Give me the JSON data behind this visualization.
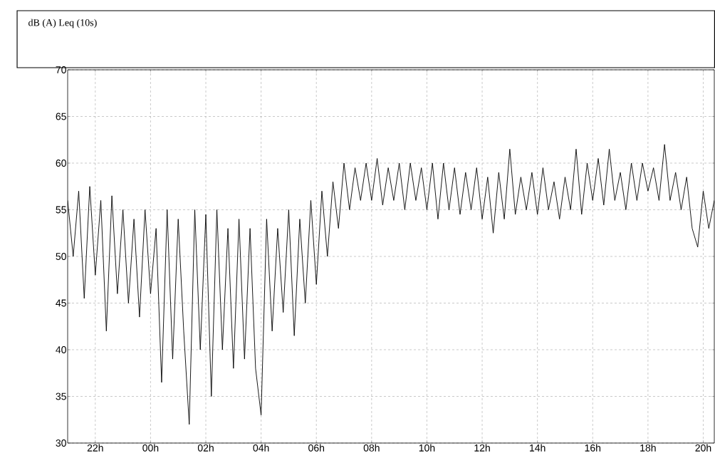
{
  "chart_data": {
    "type": "line",
    "title": "dB (A) Leq (10s)",
    "x": [
      "2000-01-01T21:00",
      "2000-01-01T21:12",
      "2000-01-01T21:24",
      "2000-01-01T21:36",
      "2000-01-01T21:48",
      "2000-01-01T22:00",
      "2000-01-01T22:12",
      "2000-01-01T22:24",
      "2000-01-01T22:36",
      "2000-01-01T22:48",
      "2000-01-01T23:00",
      "2000-01-01T23:12",
      "2000-01-01T23:24",
      "2000-01-01T23:36",
      "2000-01-01T23:48",
      "2000-01-02T00:00",
      "2000-01-02T00:12",
      "2000-01-02T00:24",
      "2000-01-02T00:36",
      "2000-01-02T00:48",
      "2000-01-02T01:00",
      "2000-01-02T01:12",
      "2000-01-02T01:24",
      "2000-01-02T01:36",
      "2000-01-02T01:48",
      "2000-01-02T02:00",
      "2000-01-02T02:12",
      "2000-01-02T02:24",
      "2000-01-02T02:36",
      "2000-01-02T02:48",
      "2000-01-02T03:00",
      "2000-01-02T03:12",
      "2000-01-02T03:24",
      "2000-01-02T03:36",
      "2000-01-02T03:48",
      "2000-01-02T04:00",
      "2000-01-02T04:12",
      "2000-01-02T04:24",
      "2000-01-02T04:36",
      "2000-01-02T04:48",
      "2000-01-02T05:00",
      "2000-01-02T05:12",
      "2000-01-02T05:24",
      "2000-01-02T05:36",
      "2000-01-02T05:48",
      "2000-01-02T06:00",
      "2000-01-02T06:12",
      "2000-01-02T06:24",
      "2000-01-02T06:36",
      "2000-01-02T06:48",
      "2000-01-02T07:00",
      "2000-01-02T07:12",
      "2000-01-02T07:24",
      "2000-01-02T07:36",
      "2000-01-02T07:48",
      "2000-01-02T08:00",
      "2000-01-02T08:12",
      "2000-01-02T08:24",
      "2000-01-02T08:36",
      "2000-01-02T08:48",
      "2000-01-02T09:00",
      "2000-01-02T09:12",
      "2000-01-02T09:24",
      "2000-01-02T09:36",
      "2000-01-02T09:48",
      "2000-01-02T10:00",
      "2000-01-02T10:12",
      "2000-01-02T10:24",
      "2000-01-02T10:36",
      "2000-01-02T10:48",
      "2000-01-02T11:00",
      "2000-01-02T11:12",
      "2000-01-02T11:24",
      "2000-01-02T11:36",
      "2000-01-02T11:48",
      "2000-01-02T12:00",
      "2000-01-02T12:12",
      "2000-01-02T12:24",
      "2000-01-02T12:36",
      "2000-01-02T12:48",
      "2000-01-02T13:00",
      "2000-01-02T13:12",
      "2000-01-02T13:24",
      "2000-01-02T13:36",
      "2000-01-02T13:48",
      "2000-01-02T14:00",
      "2000-01-02T14:12",
      "2000-01-02T14:24",
      "2000-01-02T14:36",
      "2000-01-02T14:48",
      "2000-01-02T15:00",
      "2000-01-02T15:12",
      "2000-01-02T15:24",
      "2000-01-02T15:36",
      "2000-01-02T15:48",
      "2000-01-02T16:00",
      "2000-01-02T16:12",
      "2000-01-02T16:24",
      "2000-01-02T16:36",
      "2000-01-02T16:48",
      "2000-01-02T17:00",
      "2000-01-02T17:12",
      "2000-01-02T17:24",
      "2000-01-02T17:36",
      "2000-01-02T17:48",
      "2000-01-02T18:00",
      "2000-01-02T18:12",
      "2000-01-02T18:24",
      "2000-01-02T18:36",
      "2000-01-02T18:48",
      "2000-01-02T19:00",
      "2000-01-02T19:12",
      "2000-01-02T19:24",
      "2000-01-02T19:36",
      "2000-01-02T19:48",
      "2000-01-02T20:00",
      "2000-01-02T20:12",
      "2000-01-02T20:24"
    ],
    "values": [
      56,
      50,
      57,
      45.5,
      57.5,
      48,
      56,
      42,
      56.5,
      46,
      55,
      45,
      54,
      43.5,
      55,
      46,
      53,
      36.5,
      55,
      39,
      54,
      42,
      32,
      55,
      40,
      54.5,
      35,
      55,
      40,
      53,
      38,
      54,
      39,
      53,
      38,
      33,
      54,
      42,
      53,
      44,
      55,
      41.5,
      54,
      45,
      56,
      47,
      57,
      50,
      58,
      53,
      60,
      55,
      59.5,
      56,
      60,
      56,
      60.5,
      55.5,
      59.5,
      56,
      60,
      55,
      60,
      56,
      59.5,
      55,
      60,
      54,
      60,
      55,
      59.5,
      54.5,
      59,
      55,
      59.5,
      54,
      58.5,
      52.5,
      59,
      54,
      61.5,
      54.5,
      58.5,
      55,
      59,
      54.5,
      59.5,
      55,
      58,
      54,
      58.5,
      55,
      61.5,
      54.5,
      60,
      56,
      60.5,
      55.5,
      61.5,
      56,
      59,
      55,
      60,
      56,
      60,
      57,
      59.5,
      56,
      62,
      56,
      59,
      55,
      58.5,
      53,
      51,
      57,
      53,
      56
    ],
    "color": "#000000",
    "line_style": "solid",
    "marker": "none",
    "grid": true,
    "xlim": [
      "2000-01-01T21:00",
      "2000-01-02T20:24"
    ],
    "ylim": [
      30,
      70
    ],
    "xticks": [
      {
        "value": "2000-01-01T22:00",
        "label": "22h"
      },
      {
        "value": "2000-01-02T00:00",
        "label": "00h"
      },
      {
        "value": "2000-01-02T02:00",
        "label": "02h"
      },
      {
        "value": "2000-01-02T04:00",
        "label": "04h"
      },
      {
        "value": "2000-01-02T06:00",
        "label": "06h"
      },
      {
        "value": "2000-01-02T08:00",
        "label": "08h"
      },
      {
        "value": "2000-01-02T10:00",
        "label": "10h"
      },
      {
        "value": "2000-01-02T12:00",
        "label": "12h"
      },
      {
        "value": "2000-01-02T14:00",
        "label": "14h"
      },
      {
        "value": "2000-01-02T16:00",
        "label": "16h"
      },
      {
        "value": "2000-01-02T18:00",
        "label": "18h"
      },
      {
        "value": "2000-01-02T20:00",
        "label": "20h"
      }
    ],
    "yticks": [
      30,
      35,
      40,
      45,
      50,
      55,
      60,
      65,
      70
    ]
  }
}
